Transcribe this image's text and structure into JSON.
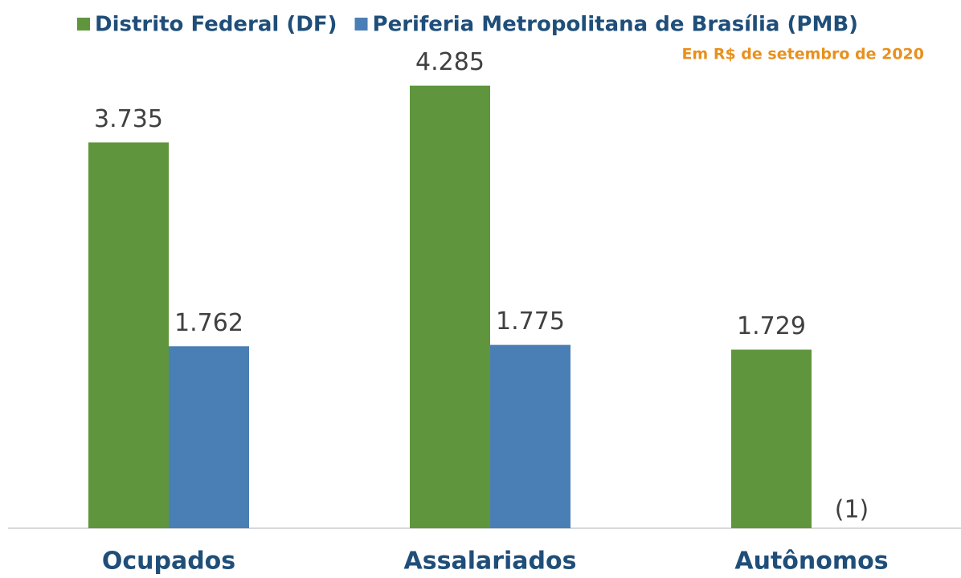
{
  "chart_data": {
    "type": "bar",
    "subtitle": "Em R$ de setembro de 2020",
    "categories": [
      "Ocupados",
      "Assalariados",
      "Autônomos"
    ],
    "series": [
      {
        "name": "Distrito Federal (DF)",
        "color": "#5f963d",
        "values": [
          3735,
          4285,
          1729
        ],
        "value_labels": [
          "3.735",
          "4.285",
          "1.729"
        ]
      },
      {
        "name": "Periferia Metropolitana de Brasília (PMB)",
        "color": "#4a7fb5",
        "values": [
          1762,
          1775,
          null
        ],
        "value_labels": [
          "1.762",
          "1.775",
          "(1)"
        ]
      }
    ],
    "ylim": [
      0,
      4500
    ]
  }
}
